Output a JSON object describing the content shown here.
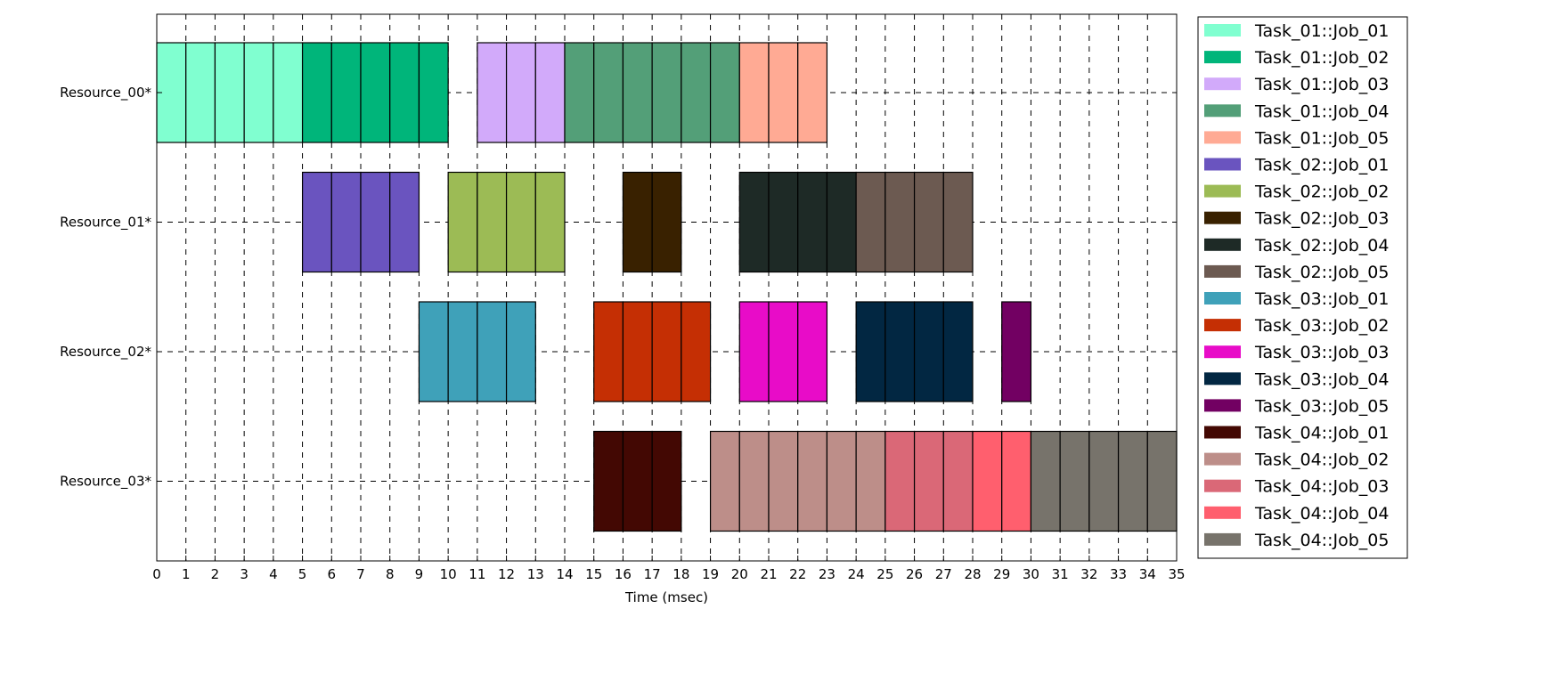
{
  "chart_data": {
    "type": "gantt",
    "xlabel": "Time (msec)",
    "xlim": [
      0,
      35
    ],
    "x_ticks": [
      "0",
      "1",
      "2",
      "3",
      "4",
      "5",
      "6",
      "7",
      "8",
      "9",
      "10",
      "11",
      "12",
      "13",
      "14",
      "15",
      "16",
      "17",
      "18",
      "19",
      "20",
      "21",
      "22",
      "23",
      "24",
      "25",
      "26",
      "27",
      "28",
      "29",
      "30",
      "31",
      "32",
      "33",
      "34",
      "35"
    ],
    "grid": true,
    "legend_position": "right",
    "resources": [
      "Resource_00*",
      "Resource_01*",
      "Resource_02*",
      "Resource_03*"
    ],
    "jobs": [
      {
        "name": "Task_01::Job_01",
        "color": "#80ffd0",
        "resource": 0,
        "start": 0,
        "end": 5
      },
      {
        "name": "Task_01::Job_02",
        "color": "#00b57a",
        "resource": 0,
        "start": 5,
        "end": 10
      },
      {
        "name": "Task_01::Job_03",
        "color": "#d2aafa",
        "resource": 0,
        "start": 11,
        "end": 14
      },
      {
        "name": "Task_01::Job_04",
        "color": "#539f78",
        "resource": 0,
        "start": 14,
        "end": 20
      },
      {
        "name": "Task_01::Job_05",
        "color": "#ffaa94",
        "resource": 0,
        "start": 20,
        "end": 23
      },
      {
        "name": "Task_02::Job_01",
        "color": "#6a54bf",
        "resource": 1,
        "start": 5,
        "end": 9
      },
      {
        "name": "Task_02::Job_02",
        "color": "#9cbb55",
        "resource": 1,
        "start": 10,
        "end": 14
      },
      {
        "name": "Task_02::Job_03",
        "color": "#392100",
        "resource": 1,
        "start": 16,
        "end": 18
      },
      {
        "name": "Task_02::Job_04",
        "color": "#1e2a26",
        "resource": 1,
        "start": 20,
        "end": 24
      },
      {
        "name": "Task_02::Job_05",
        "color": "#6c5a51",
        "resource": 1,
        "start": 24,
        "end": 28
      },
      {
        "name": "Task_03::Job_01",
        "color": "#3fa1b9",
        "resource": 2,
        "start": 9,
        "end": 13
      },
      {
        "name": "Task_03::Job_02",
        "color": "#c52f04",
        "resource": 2,
        "start": 15,
        "end": 19
      },
      {
        "name": "Task_03::Job_03",
        "color": "#e80cc8",
        "resource": 2,
        "start": 20,
        "end": 23
      },
      {
        "name": "Task_03::Job_04",
        "color": "#022742",
        "resource": 2,
        "start": 24,
        "end": 28
      },
      {
        "name": "Task_03::Job_05",
        "color": "#720062",
        "resource": 2,
        "start": 29,
        "end": 30
      },
      {
        "name": "Task_04::Job_01",
        "color": "#430803",
        "resource": 3,
        "start": 15,
        "end": 18
      },
      {
        "name": "Task_04::Job_02",
        "color": "#bd8e89",
        "resource": 3,
        "start": 19,
        "end": 25
      },
      {
        "name": "Task_04::Job_03",
        "color": "#da6877",
        "resource": 3,
        "start": 25,
        "end": 28
      },
      {
        "name": "Task_04::Job_04",
        "color": "#ff5f6e",
        "resource": 3,
        "start": 28,
        "end": 30
      },
      {
        "name": "Task_04::Job_05",
        "color": "#77736b",
        "resource": 3,
        "start": 30,
        "end": 35
      }
    ]
  }
}
